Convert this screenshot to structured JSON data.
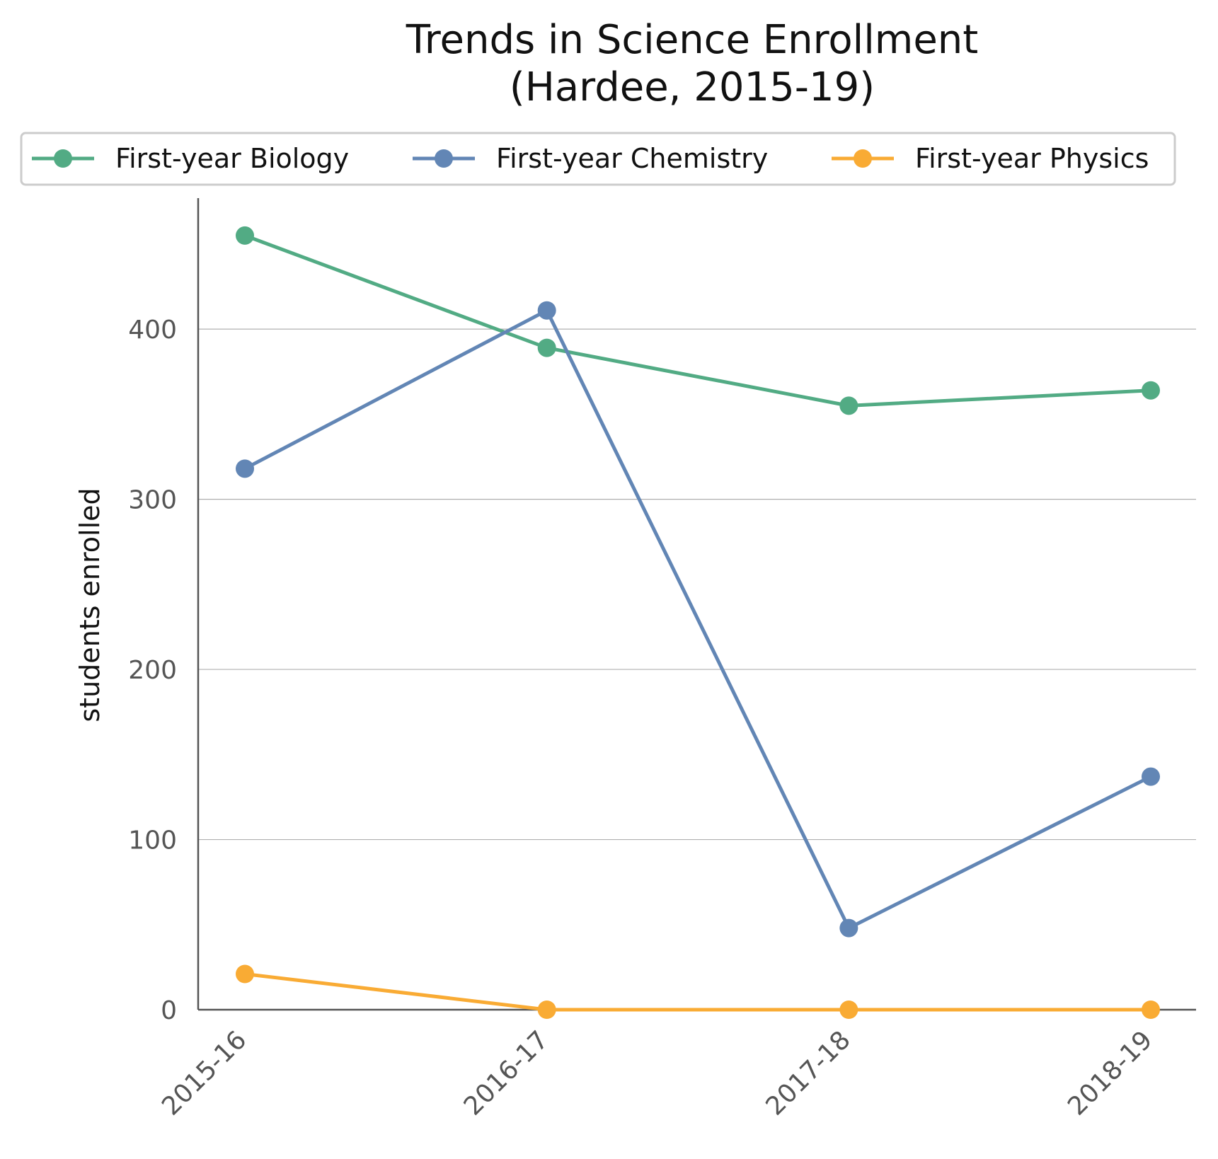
{
  "chart_data": {
    "type": "line",
    "title": [
      "Trends in Science Enrollment",
      "(Hardee, 2015-19)"
    ],
    "ylabel": "students enrolled",
    "xlabel": "",
    "categories": [
      "2015-16",
      "2016-17",
      "2017-18",
      "2018-19"
    ],
    "ylim": [
      0,
      477
    ],
    "yticks": [
      0,
      100,
      200,
      300,
      400
    ],
    "grid": "horizontal",
    "legend": "top",
    "series": [
      {
        "name": "First-year Biology",
        "color": "#52ab84",
        "values": [
          455,
          389,
          355,
          364
        ]
      },
      {
        "name": "First-year Chemistry",
        "color": "#6286b5",
        "values": [
          318,
          411,
          48,
          137
        ]
      },
      {
        "name": "First-year Physics",
        "color": "#f9ab34",
        "values": [
          21,
          0,
          0,
          0
        ]
      }
    ]
  }
}
